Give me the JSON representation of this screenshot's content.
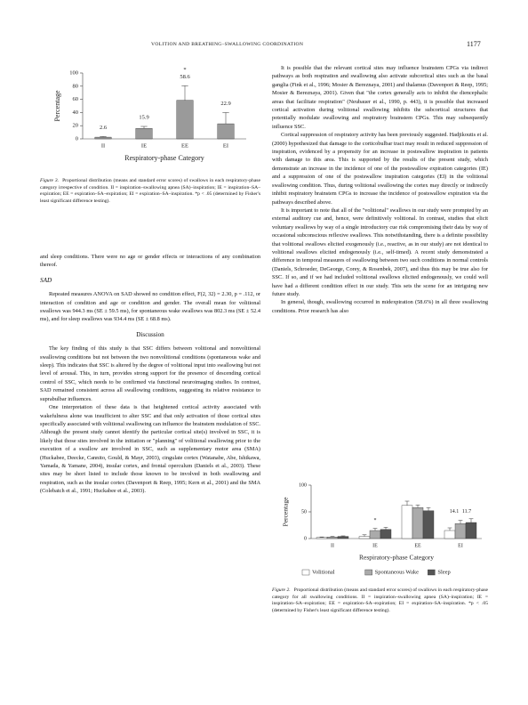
{
  "header": {
    "running_title": "VOLITION AND BREATHING–SWALLOWING COORDINATION",
    "page_number": "1177"
  },
  "chart_data": [
    {
      "type": "bar",
      "ylabel": "Percentage",
      "xlabel": "Respiratory-phase Category",
      "categories": [
        "II",
        "IE",
        "EE",
        "EI"
      ],
      "values": [
        2.6,
        15.9,
        58.6,
        22.9
      ],
      "errors": [
        1,
        3,
        22,
        17
      ],
      "color": "#9a9a9a",
      "data_labels": true,
      "annotations": [
        {
          "text": "*",
          "x": "EE"
        }
      ],
      "ylim": [
        0,
        100
      ],
      "yticks": [
        0,
        20,
        40,
        60,
        80,
        100
      ]
    },
    {
      "type": "bar",
      "ylabel": "Percentage",
      "xlabel": "Respiratory-phase Category",
      "categories": [
        "II",
        "IE",
        "EE",
        "EI"
      ],
      "series": [
        {
          "name": "Volitional",
          "color": "#ffffff",
          "values": [
            2,
            4,
            62,
            15
          ],
          "errors": [
            1,
            3,
            8,
            5
          ]
        },
        {
          "name": "Spontaneous Wake",
          "color": "#aaaaaa",
          "values": [
            3,
            15,
            58,
            28
          ],
          "errors": [
            1,
            4,
            5,
            6
          ]
        },
        {
          "name": "Sleep",
          "color": "#555555",
          "values": [
            4,
            17,
            52,
            30
          ],
          "errors": [
            1,
            4,
            6,
            7
          ]
        }
      ],
      "annotations": [
        {
          "text": "*",
          "x": "IE"
        },
        {
          "text": "14.1",
          "x": "EI"
        },
        {
          "text": "11.7",
          "x": "EI"
        }
      ],
      "legend": "bottom",
      "ylim": [
        0,
        100
      ],
      "yticks": [
        0,
        50,
        100
      ]
    }
  ],
  "figure3_caption": {
    "label": "Figure 3.",
    "text": "Proportional distribution (means and standard error scores) of swallows in each respiratory-phase category irrespective of condition. II = inspiration–swallowing apnea (SA)–inspiration; IE = inspiration–SA–expiration; EE = expiration–SA–expiration; EI = expiration–SA–inspiration. *p < .05 (determined by Fisher's least significant difference testing)."
  },
  "left_text": {
    "continuation": "and sleep conditions. There were no age or gender effects or interactions of any combination thereof.",
    "sad_heading": "SAD",
    "sad_paragraph": "Repeated measures ANOVA on SAD showed no condition effect, F(2, 32) = 2.30, p = .112, or interaction of condition and age or condition and gender. The overall mean for volitional swallows was 944.3 ms (SE ± 59.5 ms), for spontaneous wake swallows was 802.3 ms (SE ± 52.4 ms), and for sleep swallows was 934.4 ms (SE ± 68.8 ms).",
    "discussion_heading": "Discussion",
    "discussion_paragraphs": [
      "The key finding of this study is that SSC differs between volitional and nonvolitional swallowing conditions but not between the two nonvolitional conditions (spontaneous wake and sleep). This indicates that SSC is altered by the degree of volitional input into swallowing but not level of arousal. This, in turn, provides strong support for the presence of descending cortical control of SSC, which needs to be confirmed via functional neuroimaging studies. In contrast, SAD remained consistent across all swallowing conditions, suggesting its relative resistance to suprabulbar influences.",
      "One interpretation of these data is that heightened cortical activity associated with wakefulness alone was insufficient to alter SSC and that only activation of those cortical sites specifically associated with volitional swallowing can influence the brainstem modulation of SSC. Although the present study cannot identify the particular cortical site(s) involved in SSC, it is likely that those sites involved in the initiation or \"planning\" of volitional swallowing prior to the execution of a swallow are involved in SSC, such as supplementary motor area (SMA) (Huckabee, Deecke, Cannito, Gould, & Mayr, 2003), cingulate cortex (Watanabe, Abe, Ishikawa, Yamada, & Yamane, 2004), insular cortex, and frontal operculum (Daniels et al., 2003). These sites may be short listed to include those known to be involved in both swallowing and respiration, such as the insular cortex (Davenport & Reep, 1995; Kern et al., 2001) and the SMA (Colebatch et al., 1991; Huckabee et al., 2003)."
    ]
  },
  "right_text": {
    "paragraphs": [
      "It is possible that the relevant cortical sites may influence brainstem CPGs via indirect pathways as both respiration and swallowing also activate subcortical sites such as the basal ganglia (Fink et al., 1996; Mosier & Bereznaya, 2001) and thalamus (Davenport & Reep, 1995; Mosier & Bereznaya, 2001). Given that \"the cortex generally acts to inhibit the diencephalic areas that facilitate respiration\" (Neubauer et al., 1990, p. 443), it is possible that increased cortical activation during volitional swallowing inhibits the subcortical structures that potentially modulate swallowing and respiratory brainstem CPGs. This may subsequently influence SSC.",
      "Cortical suppression of respiratory activity has been previously suggested. Hadjikoutis et al. (2000) hypothesized that damage to the corticobulbar tract may result in reduced suppression of inspiration, evidenced by a propensity for an increase in postswallow inspiration in patients with damage to this area. This is supported by the results of the present study, which demonstrate an increase in the incidence of one of the postswallow expiration categories (IE) and a suppression of one of the postswallow inspiration categories (EI) in the volitional swallowing condition. Thus, during volitional swallowing the cortex may directly or indirectly inhibit respiratory brainstem CPGs to increase the incidence of postswallow expiration via the pathways described above.",
      "It is important to note that all of the \"volitional\" swallows in our study were prompted by an external auditory cue and, hence, were definitively volitional. In contrast, studies that elicit voluntary swallows by way of a single introductory cue risk compromising their data by way of occasional subconscious reflexive swallows. This notwithstanding, there is a definite possibility that volitional swallows elicited exogenously (i.e., reactive, as in our study) are not identical to volitional swallows elicited endogenously (i.e., self-timed). A recent study demonstrated a difference in temporal measures of swallowing between two such conditions in normal controls (Daniels, Schroeder, DeGeorge, Corey, & Rosenbek, 2007), and thus this may be true also for SSC. If so, and if we had included volitional swallows elicited endogenously, we could well have had a different condition effect in our study. This sets the scene for an intriguing new future study.",
      "In general, though, swallowing occurred in midexpiration (58.6%) in all three swallowing conditions. Prior research has also"
    ]
  },
  "figure2_caption": {
    "label": "Figure 2.",
    "text": "Proportional distribution (means and standard error scores) of swallows in each respiratory-phase category for all swallowing conditions. II = inspiration–swallowing apnea (SA)–inspiration; IE = inspiration–SA–expiration; EE = expiration–SA–expiration; EI = expiration–SA–inspiration. *p < .05 (determined by Fisher's least significant difference testing)."
  }
}
